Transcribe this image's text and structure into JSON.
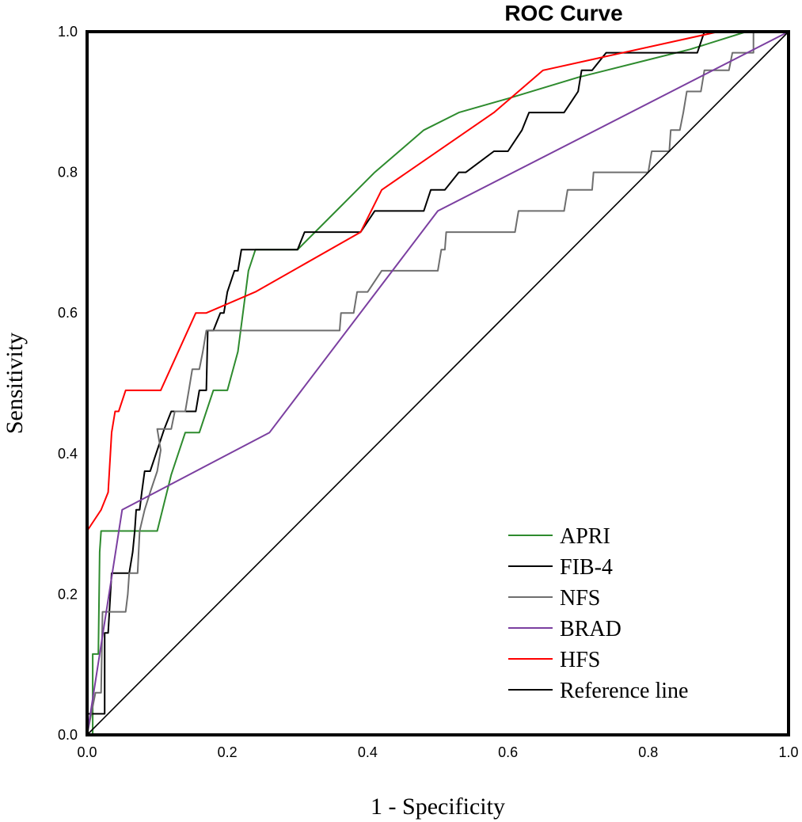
{
  "chart_data": {
    "type": "line",
    "title": "ROC Curve",
    "xlabel": "1 - Specificity",
    "ylabel": "Sensitivity",
    "xlim": [
      0,
      1
    ],
    "ylim": [
      0,
      1
    ],
    "xticks": [
      "0.0",
      "0.2",
      "0.4",
      "0.6",
      "0.8",
      "1.0"
    ],
    "yticks": [
      "0.0",
      "0.2",
      "0.4",
      "0.6",
      "0.8",
      "1.0"
    ],
    "legend_position": "bottom-right",
    "series": [
      {
        "name": "APRI",
        "color": "#2e8b2e",
        "points": [
          [
            0,
            0
          ],
          [
            0.008,
            0
          ],
          [
            0.008,
            0.115
          ],
          [
            0.016,
            0.115
          ],
          [
            0.018,
            0.26
          ],
          [
            0.02,
            0.29
          ],
          [
            0.1,
            0.29
          ],
          [
            0.12,
            0.37
          ],
          [
            0.14,
            0.43
          ],
          [
            0.16,
            0.43
          ],
          [
            0.18,
            0.49
          ],
          [
            0.2,
            0.49
          ],
          [
            0.215,
            0.545
          ],
          [
            0.23,
            0.66
          ],
          [
            0.24,
            0.69
          ],
          [
            0.3,
            0.69
          ],
          [
            0.36,
            0.75
          ],
          [
            0.41,
            0.8
          ],
          [
            0.48,
            0.86
          ],
          [
            0.53,
            0.885
          ],
          [
            0.6,
            0.905
          ],
          [
            0.7,
            0.935
          ],
          [
            0.8,
            0.96
          ],
          [
            0.86,
            0.975
          ],
          [
            0.94,
            1.0
          ],
          [
            1.0,
            1.0
          ]
        ]
      },
      {
        "name": "FIB-4",
        "color": "#000000",
        "points": [
          [
            0,
            0
          ],
          [
            0,
            0.03
          ],
          [
            0.025,
            0.03
          ],
          [
            0.025,
            0.145
          ],
          [
            0.03,
            0.145
          ],
          [
            0.035,
            0.23
          ],
          [
            0.06,
            0.23
          ],
          [
            0.065,
            0.26
          ],
          [
            0.068,
            0.29
          ],
          [
            0.07,
            0.32
          ],
          [
            0.075,
            0.32
          ],
          [
            0.078,
            0.345
          ],
          [
            0.082,
            0.375
          ],
          [
            0.09,
            0.375
          ],
          [
            0.1,
            0.405
          ],
          [
            0.11,
            0.435
          ],
          [
            0.12,
            0.46
          ],
          [
            0.155,
            0.46
          ],
          [
            0.16,
            0.49
          ],
          [
            0.17,
            0.49
          ],
          [
            0.172,
            0.575
          ],
          [
            0.18,
            0.575
          ],
          [
            0.19,
            0.6
          ],
          [
            0.195,
            0.6
          ],
          [
            0.2,
            0.63
          ],
          [
            0.21,
            0.66
          ],
          [
            0.215,
            0.66
          ],
          [
            0.22,
            0.69
          ],
          [
            0.3,
            0.69
          ],
          [
            0.31,
            0.715
          ],
          [
            0.39,
            0.715
          ],
          [
            0.41,
            0.745
          ],
          [
            0.48,
            0.745
          ],
          [
            0.49,
            0.775
          ],
          [
            0.51,
            0.775
          ],
          [
            0.53,
            0.8
          ],
          [
            0.54,
            0.8
          ],
          [
            0.58,
            0.83
          ],
          [
            0.6,
            0.83
          ],
          [
            0.62,
            0.86
          ],
          [
            0.63,
            0.885
          ],
          [
            0.68,
            0.885
          ],
          [
            0.7,
            0.915
          ],
          [
            0.705,
            0.945
          ],
          [
            0.72,
            0.945
          ],
          [
            0.74,
            0.97
          ],
          [
            0.87,
            0.97
          ],
          [
            0.88,
            1.0
          ],
          [
            1.0,
            1.0
          ]
        ]
      },
      {
        "name": "NFS",
        "color": "#6e6e6e",
        "points": [
          [
            0,
            0
          ],
          [
            0.012,
            0.06
          ],
          [
            0.02,
            0.06
          ],
          [
            0.022,
            0.175
          ],
          [
            0.055,
            0.175
          ],
          [
            0.058,
            0.2
          ],
          [
            0.06,
            0.23
          ],
          [
            0.072,
            0.23
          ],
          [
            0.075,
            0.29
          ],
          [
            0.082,
            0.32
          ],
          [
            0.09,
            0.345
          ],
          [
            0.1,
            0.375
          ],
          [
            0.105,
            0.405
          ],
          [
            0.1,
            0.435
          ],
          [
            0.12,
            0.435
          ],
          [
            0.125,
            0.46
          ],
          [
            0.14,
            0.46
          ],
          [
            0.145,
            0.49
          ],
          [
            0.15,
            0.52
          ],
          [
            0.16,
            0.52
          ],
          [
            0.165,
            0.545
          ],
          [
            0.17,
            0.575
          ],
          [
            0.36,
            0.575
          ],
          [
            0.362,
            0.6
          ],
          [
            0.38,
            0.6
          ],
          [
            0.385,
            0.63
          ],
          [
            0.4,
            0.63
          ],
          [
            0.42,
            0.66
          ],
          [
            0.5,
            0.66
          ],
          [
            0.505,
            0.69
          ],
          [
            0.51,
            0.69
          ],
          [
            0.512,
            0.715
          ],
          [
            0.61,
            0.715
          ],
          [
            0.615,
            0.745
          ],
          [
            0.68,
            0.745
          ],
          [
            0.685,
            0.775
          ],
          [
            0.72,
            0.775
          ],
          [
            0.722,
            0.8
          ],
          [
            0.8,
            0.8
          ],
          [
            0.805,
            0.83
          ],
          [
            0.83,
            0.83
          ],
          [
            0.832,
            0.86
          ],
          [
            0.845,
            0.86
          ],
          [
            0.85,
            0.885
          ],
          [
            0.855,
            0.915
          ],
          [
            0.875,
            0.915
          ],
          [
            0.88,
            0.945
          ],
          [
            0.915,
            0.945
          ],
          [
            0.92,
            0.97
          ],
          [
            0.95,
            0.97
          ],
          [
            0.95,
            1.0
          ],
          [
            1.0,
            1.0
          ]
        ]
      },
      {
        "name": "BRAD",
        "color": "#7b3fa0",
        "points": [
          [
            0,
            0
          ],
          [
            0.05,
            0.32
          ],
          [
            0.26,
            0.43
          ],
          [
            0.5,
            0.745
          ],
          [
            1.0,
            1.0
          ]
        ]
      },
      {
        "name": "HFS",
        "color": "#ff0000",
        "points": [
          [
            0,
            0.29
          ],
          [
            0.02,
            0.32
          ],
          [
            0.03,
            0.345
          ],
          [
            0.035,
            0.43
          ],
          [
            0.04,
            0.46
          ],
          [
            0.045,
            0.46
          ],
          [
            0.055,
            0.49
          ],
          [
            0.105,
            0.49
          ],
          [
            0.155,
            0.6
          ],
          [
            0.17,
            0.6
          ],
          [
            0.24,
            0.63
          ],
          [
            0.39,
            0.715
          ],
          [
            0.42,
            0.775
          ],
          [
            0.58,
            0.885
          ],
          [
            0.65,
            0.945
          ],
          [
            0.9,
            1.0
          ],
          [
            1.0,
            1.0
          ]
        ]
      },
      {
        "name": "Reference line",
        "color": "#000000",
        "points": [
          [
            0,
            0
          ],
          [
            1,
            1
          ]
        ]
      }
    ]
  }
}
